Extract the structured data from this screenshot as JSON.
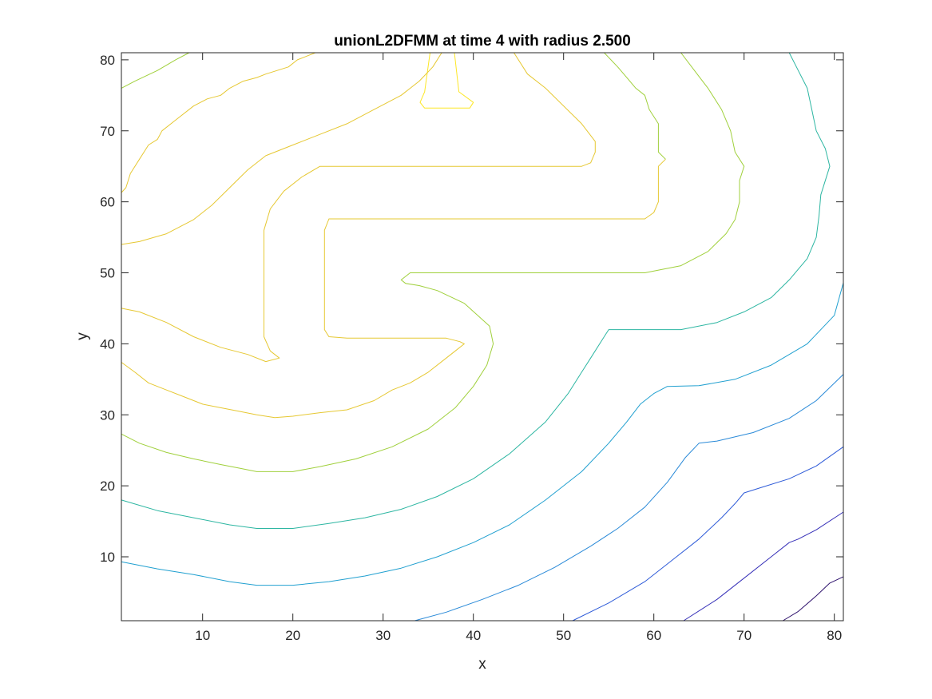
{
  "chart_data": {
    "type": "contour",
    "title": "unionL2DFMM at time 4 with radius 2.500",
    "xlabel": "x",
    "ylabel": "y",
    "xlim": [
      1,
      81
    ],
    "ylim": [
      1,
      81
    ],
    "xticks": [
      10,
      20,
      30,
      40,
      50,
      60,
      70,
      80
    ],
    "yticks": [
      10,
      20,
      30,
      40,
      50,
      60,
      70,
      80
    ],
    "xtick_labels": [
      "10",
      "20",
      "30",
      "40",
      "50",
      "60",
      "70",
      "80"
    ],
    "ytick_labels": [
      "10",
      "20",
      "30",
      "40",
      "50",
      "60",
      "70",
      "80"
    ],
    "grid": false,
    "contours": [
      {
        "color": "#fde725",
        "paths": [
          [
            [
              35.2,
              81
            ],
            [
              34.6,
              75.5
            ],
            [
              34.1,
              74
            ],
            [
              34.6,
              73.2
            ],
            [
              39.6,
              73.2
            ],
            [
              40,
              74
            ],
            [
              38.4,
              75.5
            ],
            [
              37.9,
              81
            ]
          ]
        ]
      },
      {
        "color": "#e6c833",
        "paths": [
          [
            [
              1,
              61.3
            ],
            [
              1.5,
              62
            ],
            [
              2,
              64
            ],
            [
              3,
              66
            ],
            [
              3.5,
              67
            ],
            [
              4,
              68
            ],
            [
              5,
              68.8
            ],
            [
              5.5,
              70
            ],
            [
              7,
              71.5
            ],
            [
              9,
              73.5
            ],
            [
              10.5,
              74.5
            ],
            [
              12,
              75
            ],
            [
              13,
              76
            ],
            [
              14.5,
              77
            ],
            [
              16,
              77.5
            ],
            [
              17,
              78
            ],
            [
              19.5,
              79
            ],
            [
              20.5,
              80
            ],
            [
              22.5,
              81
            ]
          ],
          [
            [
              1,
              54
            ],
            [
              3,
              54.4
            ],
            [
              6,
              55.5
            ],
            [
              9,
              57.5
            ],
            [
              11,
              59.5
            ],
            [
              13,
              62
            ],
            [
              15,
              64.5
            ],
            [
              17,
              66.5
            ],
            [
              20,
              68
            ],
            [
              23,
              69.5
            ],
            [
              26,
              71
            ],
            [
              29,
              73
            ],
            [
              32,
              75
            ],
            [
              34,
              77
            ],
            [
              35.5,
              79
            ],
            [
              36.5,
              81
            ]
          ],
          [
            [
              1,
              37.4
            ],
            [
              2.5,
              36
            ],
            [
              4,
              34.5
            ],
            [
              6,
              33.5
            ],
            [
              8,
              32.5
            ],
            [
              10,
              31.5
            ],
            [
              12,
              31
            ],
            [
              14,
              30.5
            ],
            [
              16,
              30
            ],
            [
              18,
              29.6
            ],
            [
              20,
              29.8
            ],
            [
              23,
              30.3
            ],
            [
              26,
              30.7
            ],
            [
              29,
              32
            ],
            [
              31,
              33.5
            ],
            [
              33,
              34.5
            ],
            [
              35,
              36
            ],
            [
              37,
              38
            ],
            [
              38,
              39
            ],
            [
              39,
              40
            ],
            [
              38.5,
              40.3
            ],
            [
              37,
              40.8
            ],
            [
              26,
              40.8
            ],
            [
              24,
              41
            ],
            [
              23.5,
              42
            ],
            [
              23.5,
              56
            ],
            [
              24,
              57.6
            ],
            [
              59,
              57.6
            ],
            [
              60,
              58.5
            ],
            [
              60.5,
              60
            ],
            [
              60.5,
              65
            ],
            [
              61.3,
              66
            ]
          ],
          [
            [
              1,
              45
            ],
            [
              3,
              44.5
            ],
            [
              6,
              43
            ],
            [
              9,
              41
            ],
            [
              12,
              39.5
            ],
            [
              15,
              38.5
            ],
            [
              17,
              37.5
            ],
            [
              18.5,
              38
            ],
            [
              17.5,
              39
            ],
            [
              16.8,
              41
            ],
            [
              16.8,
              56
            ],
            [
              17.5,
              59
            ],
            [
              19,
              61.5
            ],
            [
              21,
              63.5
            ],
            [
              23,
              65
            ],
            [
              52,
              65
            ],
            [
              53,
              65.5
            ],
            [
              53.5,
              67
            ],
            [
              53.5,
              68.5
            ],
            [
              52,
              71
            ],
            [
              48,
              76
            ],
            [
              46,
              78
            ],
            [
              44.5,
              81
            ]
          ]
        ]
      },
      {
        "color": "#a0d03c",
        "paths": [
          [
            [
              1,
              76
            ],
            [
              2.5,
              77
            ],
            [
              5,
              78.5
            ],
            [
              7,
              80
            ],
            [
              8.5,
              81
            ]
          ],
          [
            [
              1,
              27.3
            ],
            [
              3,
              26
            ],
            [
              6,
              24.7
            ],
            [
              9,
              23.8
            ],
            [
              12,
              23
            ],
            [
              14,
              22.5
            ],
            [
              16,
              22
            ],
            [
              20,
              22
            ],
            [
              23,
              22.7
            ],
            [
              27,
              23.8
            ],
            [
              31,
              25.5
            ],
            [
              35,
              28
            ],
            [
              38,
              31
            ],
            [
              40,
              34
            ],
            [
              41.5,
              37
            ],
            [
              42.2,
              40
            ],
            [
              41.8,
              42.5
            ],
            [
              39,
              45.7
            ],
            [
              36,
              47.5
            ],
            [
              34,
              48.2
            ],
            [
              32.5,
              48.5
            ],
            [
              32,
              49
            ],
            [
              33,
              50
            ],
            [
              59,
              50
            ],
            [
              63,
              51
            ],
            [
              66,
              53
            ],
            [
              68,
              55.5
            ],
            [
              69,
              57.5
            ],
            [
              69.5,
              60
            ],
            [
              69.5,
              63
            ],
            [
              70,
              65
            ],
            [
              69,
              67
            ],
            [
              68.5,
              70
            ],
            [
              67.5,
              73
            ],
            [
              66,
              76
            ],
            [
              64.5,
              78.5
            ],
            [
              63,
              81
            ]
          ],
          [
            [
              61.3,
              66
            ],
            [
              60.5,
              67
            ],
            [
              60.5,
              71
            ],
            [
              59.5,
              73
            ],
            [
              59,
              75
            ],
            [
              58,
              76
            ],
            [
              57,
              77.5
            ],
            [
              56,
              79
            ],
            [
              54.5,
              81
            ]
          ]
        ]
      },
      {
        "color": "#2db6a2",
        "paths": [
          [
            [
              1,
              18
            ],
            [
              5,
              16.5
            ],
            [
              9,
              15.5
            ],
            [
              13,
              14.5
            ],
            [
              16,
              14
            ],
            [
              20,
              14
            ],
            [
              24,
              14.7
            ],
            [
              28,
              15.5
            ],
            [
              32,
              16.7
            ],
            [
              36,
              18.5
            ],
            [
              40,
              21
            ],
            [
              44,
              24.5
            ],
            [
              48,
              29
            ],
            [
              50.5,
              33
            ],
            [
              52,
              36
            ],
            [
              53,
              38
            ],
            [
              54.5,
              41
            ],
            [
              55,
              42
            ],
            [
              63,
              42
            ],
            [
              67,
              43
            ],
            [
              70,
              44.5
            ],
            [
              73,
              46.5
            ],
            [
              75,
              49
            ],
            [
              77,
              52
            ],
            [
              78,
              55
            ],
            [
              78.3,
              58
            ],
            [
              78.5,
              61
            ],
            [
              79.5,
              65
            ],
            [
              79,
              67.5
            ],
            [
              78,
              70
            ],
            [
              77.5,
              73
            ],
            [
              77,
              76
            ],
            [
              76,
              78.5
            ],
            [
              75,
              81
            ]
          ]
        ]
      },
      {
        "color": "#21a0d0",
        "paths": [
          [
            [
              1,
              9.3
            ],
            [
              5,
              8.3
            ],
            [
              9,
              7.5
            ],
            [
              13,
              6.5
            ],
            [
              16,
              6
            ],
            [
              20,
              6
            ],
            [
              24,
              6.5
            ],
            [
              28,
              7.3
            ],
            [
              32,
              8.4
            ],
            [
              36,
              10
            ],
            [
              40,
              12
            ],
            [
              44,
              14.5
            ],
            [
              48,
              18
            ],
            [
              52,
              22
            ],
            [
              55,
              26
            ],
            [
              57,
              29
            ],
            [
              58.5,
              31.5
            ],
            [
              60,
              33
            ],
            [
              61.5,
              34
            ],
            [
              65,
              34.1
            ],
            [
              69,
              35
            ],
            [
              73,
              37
            ],
            [
              77,
              40
            ],
            [
              80,
              44
            ],
            [
              81,
              48.6
            ]
          ]
        ]
      },
      {
        "color": "#2a8ad8",
        "paths": [
          [
            [
              33.5,
              1
            ],
            [
              37,
              2.2
            ],
            [
              41,
              4
            ],
            [
              45,
              6
            ],
            [
              49,
              8.5
            ],
            [
              53,
              11.5
            ],
            [
              56,
              14
            ],
            [
              59,
              17
            ],
            [
              61.5,
              20.5
            ],
            [
              63.5,
              24
            ],
            [
              65,
              26
            ],
            [
              67,
              26.3
            ],
            [
              71,
              27.5
            ],
            [
              75,
              29.5
            ],
            [
              78,
              32
            ],
            [
              81,
              35.7
            ]
          ]
        ]
      },
      {
        "color": "#2e5bd8",
        "paths": [
          [
            [
              51,
              1
            ],
            [
              55,
              3.5
            ],
            [
              59,
              6.5
            ],
            [
              62,
              9.5
            ],
            [
              65,
              12.5
            ],
            [
              67.5,
              15.5
            ],
            [
              69,
              17.5
            ],
            [
              70,
              19
            ],
            [
              72,
              19.8
            ],
            [
              75,
              21
            ],
            [
              78,
              22.8
            ],
            [
              81,
              25.5
            ]
          ]
        ]
      },
      {
        "color": "#3630b8",
        "paths": [
          [
            [
              63.3,
              1
            ],
            [
              67,
              4
            ],
            [
              70,
              7
            ],
            [
              73,
              10
            ],
            [
              75,
              12
            ],
            [
              76,
              12.5
            ],
            [
              78,
              13.8
            ],
            [
              81,
              16.3
            ]
          ]
        ]
      },
      {
        "color": "#30146e",
        "paths": [
          [
            [
              74.3,
              1
            ],
            [
              76,
              2.3
            ],
            [
              78,
              4.5
            ],
            [
              79.5,
              6.3
            ],
            [
              81,
              7.2
            ]
          ]
        ]
      }
    ]
  }
}
